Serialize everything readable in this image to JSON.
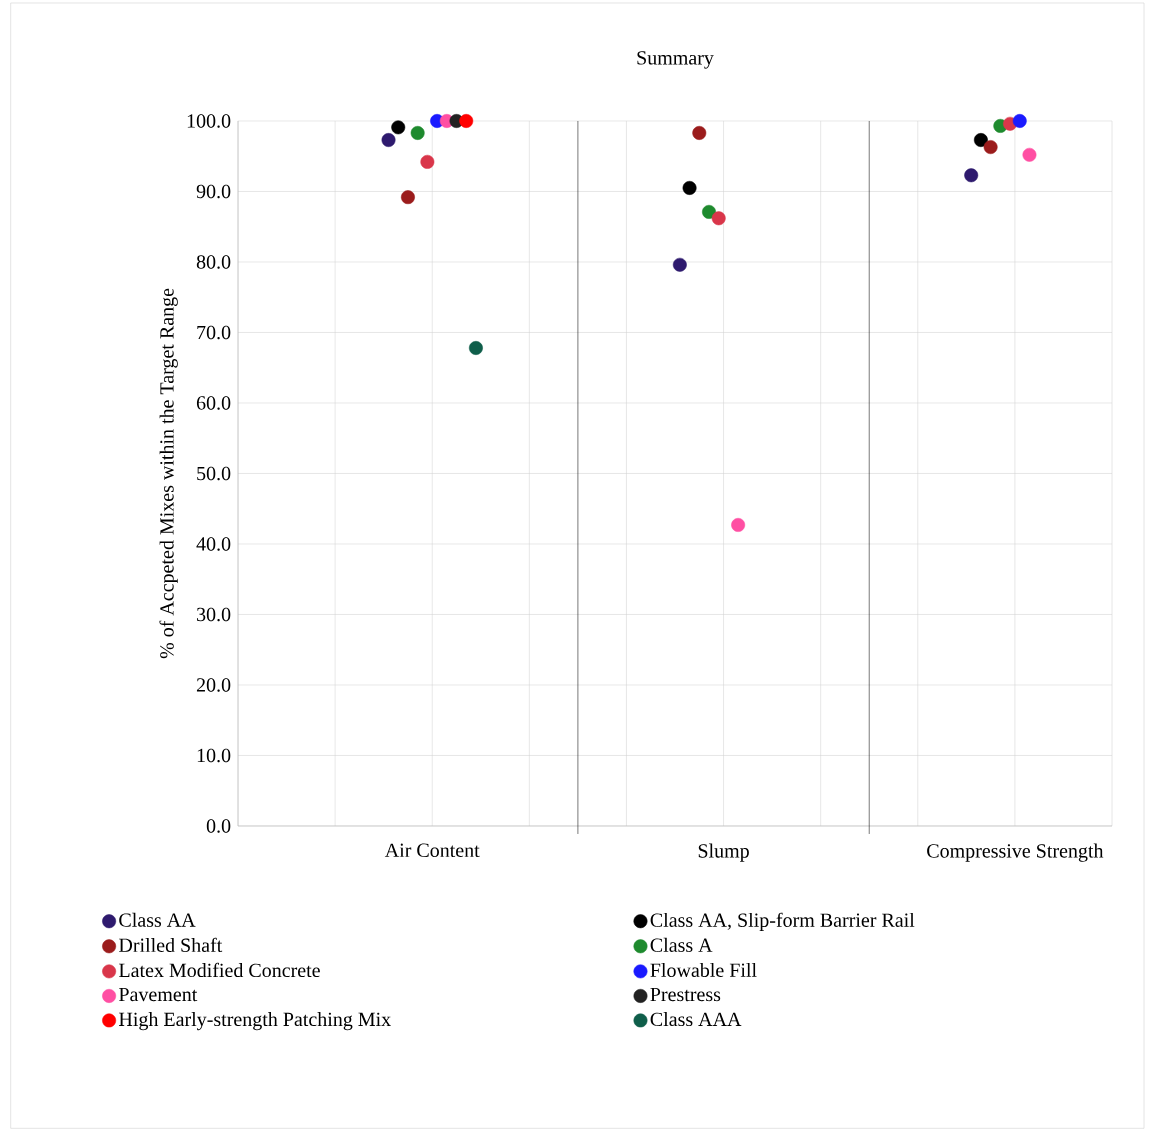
{
  "chart_data": {
    "type": "scatter",
    "title": "Summary",
    "ylabel": "% of Accpeted Mixes within the Target Range",
    "categories": [
      "Air Content",
      "Slump",
      "Compressive Strength"
    ],
    "ylim": [
      0,
      100
    ],
    "yticks": [
      {
        "value": 0,
        "label": "0.0"
      },
      {
        "value": 10,
        "label": "10.0"
      },
      {
        "value": 20,
        "label": "20.0"
      },
      {
        "value": 30,
        "label": "30.0"
      },
      {
        "value": 40,
        "label": "40.0"
      },
      {
        "value": 50,
        "label": "50.0"
      },
      {
        "value": 60,
        "label": "60.0"
      },
      {
        "value": 70,
        "label": "70.0"
      },
      {
        "value": 80,
        "label": "80.0"
      },
      {
        "value": 90,
        "label": "90.0"
      },
      {
        "value": 100,
        "label": "100.0"
      }
    ],
    "grid": true,
    "legend": "bottom",
    "series": [
      {
        "name": "Class AA",
        "color": "#2e1a6e",
        "values": [
          97.3,
          79.6,
          92.3
        ]
      },
      {
        "name": "Class AA, Slip-form Barrier Rail",
        "color": "#000000",
        "values": [
          99.1,
          90.5,
          97.3
        ]
      },
      {
        "name": "Drilled Shaft",
        "color": "#9b1c1c",
        "values": [
          89.2,
          98.3,
          96.3
        ]
      },
      {
        "name": "Class A",
        "color": "#1e8a2e",
        "values": [
          98.3,
          87.1,
          99.3
        ]
      },
      {
        "name": "Latex Modified Concrete",
        "color": "#d9364a",
        "values": [
          94.2,
          86.2,
          99.6
        ]
      },
      {
        "name": "Flowable Fill",
        "color": "#1a1aff",
        "values": [
          100,
          null,
          100
        ]
      },
      {
        "name": "Pavement",
        "color": "#ff4fa3",
        "values": [
          100,
          42.7,
          95.2
        ]
      },
      {
        "name": "Prestress",
        "color": "#222222",
        "values": [
          100,
          null,
          null
        ]
      },
      {
        "name": "High Early-strength Patching Mix",
        "color": "#ff0000",
        "values": [
          100,
          null,
          null
        ]
      },
      {
        "name": "Class AAA",
        "color": "#0f5e4a",
        "values": [
          67.8,
          null,
          null
        ]
      }
    ]
  }
}
